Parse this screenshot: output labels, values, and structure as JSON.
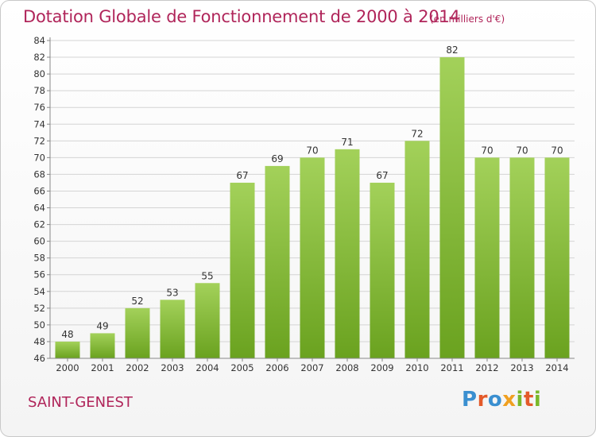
{
  "title": "Dotation Globale de Fonctionnement de 2000 à 2014",
  "unit_note": "(en milliers d'€)",
  "commune": "SAINT-GENEST",
  "logo_text": "Proxiti",
  "colors": {
    "bar_top": "#a3d15a",
    "bar_bottom": "#6aa21f",
    "title": "#b0255a",
    "grid": "#d4d4d4",
    "axis": "#888888"
  },
  "chart_data": {
    "type": "bar",
    "title": "Dotation Globale de Fonctionnement de 2000 à 2014",
    "subtitle": "(en milliers d'€)",
    "categories": [
      "2000",
      "2001",
      "2002",
      "2003",
      "2004",
      "2005",
      "2006",
      "2007",
      "2008",
      "2009",
      "2010",
      "2011",
      "2012",
      "2013",
      "2014"
    ],
    "values": [
      48,
      49,
      52,
      53,
      55,
      67,
      69,
      70,
      71,
      67,
      72,
      82,
      70,
      70,
      70
    ],
    "ylim": [
      46,
      84
    ],
    "yticks": [
      46,
      48,
      50,
      52,
      54,
      56,
      58,
      60,
      62,
      64,
      66,
      68,
      70,
      72,
      74,
      76,
      78,
      80,
      82,
      84
    ],
    "grid": true,
    "legend": "none",
    "xlabel": "",
    "ylabel": ""
  }
}
